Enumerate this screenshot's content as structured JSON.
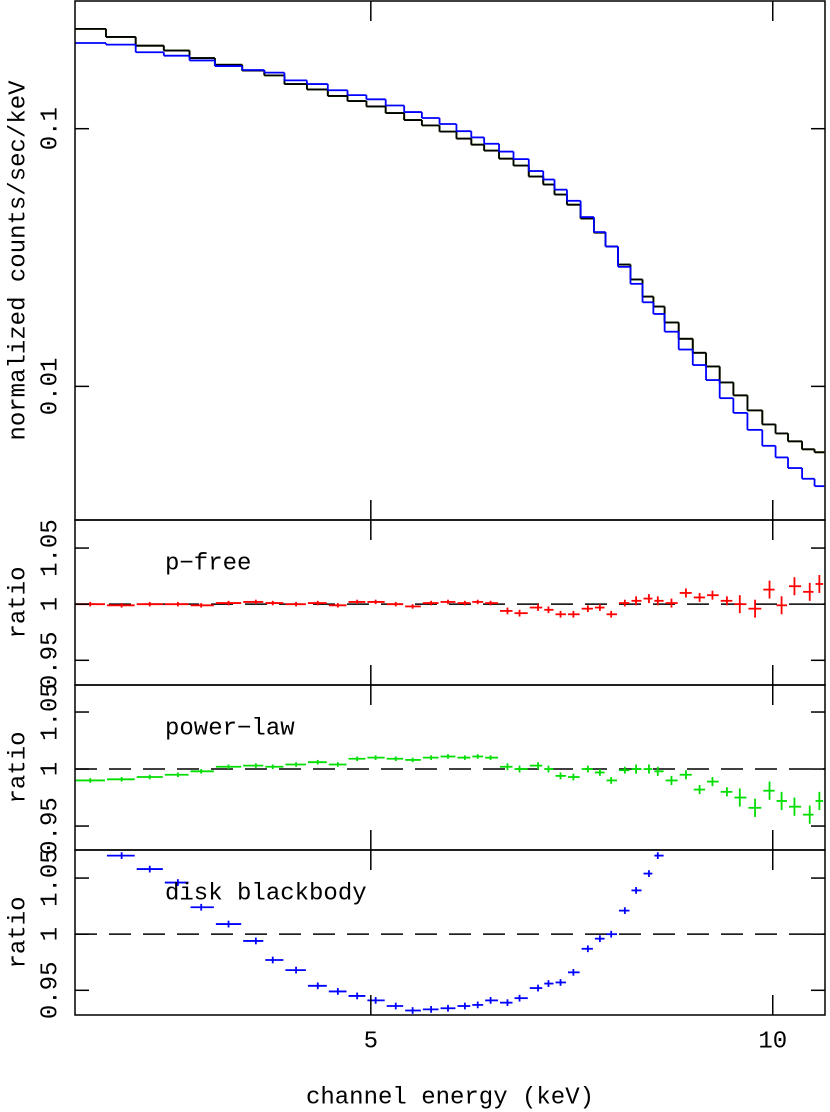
{
  "chart_data": [
    {
      "type": "step",
      "ylabel": "normalized counts/sec/keV",
      "log": true,
      "xlim": [
        1.32,
        10.65
      ],
      "xticks": [
        5,
        10
      ],
      "ylim": [
        0.00303,
        0.313
      ],
      "yticks": [
        0.01,
        0.1
      ],
      "x": [
        1.51,
        1.9,
        2.25,
        2.6,
        2.89,
        3.23,
        3.57,
        3.78,
        4.07,
        4.34,
        4.59,
        4.83,
        5.06,
        5.31,
        5.52,
        5.75,
        5.96,
        6.17,
        6.33,
        6.49,
        6.7,
        6.85,
        7.08,
        7.21,
        7.36,
        7.52,
        7.7,
        7.85,
        7.99,
        8.16,
        8.3,
        8.46,
        8.57,
        8.74,
        8.92,
        9.09,
        9.25,
        9.43,
        9.59,
        9.78,
        9.96,
        10.11,
        10.27,
        10.46,
        10.58
      ],
      "series": [
        {
          "color": "#ff0000",
          "values": [
            0.244,
            0.227,
            0.21,
            0.201,
            0.188,
            0.177,
            0.168,
            0.161,
            0.149,
            0.142,
            0.134,
            0.128,
            0.122,
            0.115,
            0.108,
            0.103,
            0.0974,
            0.0915,
            0.0867,
            0.0822,
            0.0765,
            0.0719,
            0.0652,
            0.0607,
            0.0555,
            0.0507,
            0.0448,
            0.0395,
            0.0349,
            0.0297,
            0.026,
            0.0223,
            0.0204,
            0.0177,
            0.0153,
            0.0135,
            0.01195,
            0.01036,
            0.00923,
            0.00807,
            0.00712,
            0.00657,
            0.00612,
            0.0057,
            0.00555
          ]
        },
        {
          "color": "#00dd00",
          "values": [
            0.244,
            0.227,
            0.21,
            0.201,
            0.188,
            0.177,
            0.168,
            0.161,
            0.149,
            0.142,
            0.134,
            0.128,
            0.122,
            0.115,
            0.108,
            0.103,
            0.0974,
            0.0915,
            0.0867,
            0.0822,
            0.0765,
            0.0719,
            0.0652,
            0.0607,
            0.0555,
            0.0507,
            0.0448,
            0.0395,
            0.0349,
            0.0297,
            0.026,
            0.0223,
            0.0204,
            0.0177,
            0.0153,
            0.0135,
            0.01195,
            0.01036,
            0.00923,
            0.00807,
            0.00712,
            0.00657,
            0.00612,
            0.0057,
            0.00555
          ]
        },
        {
          "color": "#000000",
          "values": [
            0.244,
            0.227,
            0.21,
            0.201,
            0.188,
            0.177,
            0.168,
            0.161,
            0.149,
            0.142,
            0.134,
            0.128,
            0.122,
            0.115,
            0.108,
            0.103,
            0.0974,
            0.0915,
            0.0867,
            0.0822,
            0.0765,
            0.0719,
            0.0652,
            0.0607,
            0.0555,
            0.0507,
            0.0448,
            0.0395,
            0.0349,
            0.0297,
            0.026,
            0.0223,
            0.0204,
            0.0177,
            0.0153,
            0.0135,
            0.01195,
            0.01036,
            0.00923,
            0.00807,
            0.00712,
            0.00657,
            0.00612,
            0.0057,
            0.00555
          ]
        },
        {
          "color": "#0000ff",
          "values": [
            0.215,
            0.212,
            0.198,
            0.192,
            0.184,
            0.175,
            0.169,
            0.165,
            0.154,
            0.149,
            0.141,
            0.135,
            0.13,
            0.123,
            0.116,
            0.11,
            0.1043,
            0.0978,
            0.0925,
            0.0874,
            0.0815,
            0.0762,
            0.0685,
            0.0635,
            0.058,
            0.0525,
            0.0454,
            0.0397,
            0.0349,
            0.0291,
            0.025,
            0.0212,
            0.0191,
            0.0163,
            0.0139,
            0.0121,
            0.01058,
            0.009,
            0.00789,
            0.00678,
            0.00588,
            0.0053,
            0.00482,
            0.00438,
            0.0041
          ]
        }
      ]
    },
    {
      "type": "ratio",
      "ylabel": "ratio",
      "annotation": "p−free",
      "color": "#ff0000",
      "hline": 1,
      "xlim": [
        1.32,
        10.65
      ],
      "xticks": [
        5,
        10
      ],
      "ylim": [
        0.928,
        1.075
      ],
      "yticks": [
        0.95,
        1,
        1.05
      ],
      "x": [
        1.51,
        1.9,
        2.25,
        2.6,
        2.89,
        3.23,
        3.57,
        3.78,
        4.07,
        4.34,
        4.59,
        4.83,
        5.06,
        5.31,
        5.52,
        5.75,
        5.96,
        6.17,
        6.33,
        6.49,
        6.7,
        6.85,
        7.08,
        7.21,
        7.36,
        7.52,
        7.7,
        7.85,
        7.99,
        8.16,
        8.3,
        8.46,
        8.57,
        8.74,
        8.92,
        9.09,
        9.25,
        9.43,
        9.59,
        9.78,
        9.96,
        10.11,
        10.27,
        10.46,
        10.58
      ],
      "values": [
        1.0,
        0.999,
        1.0,
        1.0,
        0.999,
        1.001,
        1.002,
        1.001,
        1.0,
        1.001,
        0.999,
        1.002,
        1.002,
        1.0,
        0.998,
        1.001,
        1.002,
        1.001,
        1.002,
        1.001,
        0.994,
        0.992,
        0.997,
        0.995,
        0.991,
        0.991,
        0.996,
        0.997,
        0.991,
        1.001,
        1.003,
        1.005,
        1.003,
        1.001,
        1.01,
        1.006,
        1.008,
        1.003,
        1.0,
        0.996,
        1.013,
        0.999,
        1.016,
        1.011,
        1.018
      ],
      "errors": [
        0.002,
        0.002,
        0.002,
        0.002,
        0.002,
        0.002,
        0.002,
        0.002,
        0.002,
        0.002,
        0.002,
        0.002,
        0.002,
        0.002,
        0.002,
        0.002,
        0.002,
        0.002,
        0.002,
        0.002,
        0.003,
        0.003,
        0.003,
        0.003,
        0.003,
        0.003,
        0.003,
        0.003,
        0.003,
        0.003,
        0.004,
        0.004,
        0.004,
        0.004,
        0.004,
        0.004,
        0.004,
        0.004,
        0.008,
        0.008,
        0.008,
        0.008,
        0.008,
        0.008,
        0.008
      ]
    },
    {
      "type": "ratio",
      "ylabel": "ratio",
      "annotation": "power−law",
      "color": "#00dd00",
      "hline": 1,
      "xlim": [
        1.32,
        10.65
      ],
      "xticks": [
        5,
        10
      ],
      "ylim": [
        0.929,
        1.0737
      ],
      "yticks": [
        0.95,
        1,
        1.05
      ],
      "x": [
        1.51,
        1.9,
        2.25,
        2.6,
        2.89,
        3.23,
        3.57,
        3.78,
        4.07,
        4.34,
        4.59,
        4.83,
        5.06,
        5.31,
        5.52,
        5.75,
        5.96,
        6.17,
        6.33,
        6.49,
        6.7,
        6.85,
        7.08,
        7.21,
        7.36,
        7.52,
        7.7,
        7.85,
        7.99,
        8.16,
        8.3,
        8.46,
        8.57,
        8.74,
        8.92,
        9.09,
        9.25,
        9.43,
        9.59,
        9.78,
        9.96,
        10.11,
        10.27,
        10.46,
        10.58
      ],
      "values": [
        0.99,
        0.991,
        0.993,
        0.995,
        0.998,
        1.002,
        1.003,
        1.002,
        1.004,
        1.006,
        1.004,
        1.009,
        1.01,
        1.009,
        1.008,
        1.01,
        1.011,
        1.01,
        1.011,
        1.01,
        1.002,
        1.0,
        1.003,
        1.0,
        0.994,
        0.993,
        1.0,
        0.997,
        0.99,
        0.999,
        1.0,
        1.0,
        0.998,
        0.99,
        0.995,
        0.982,
        0.989,
        0.98,
        0.975,
        0.966,
        0.981,
        0.972,
        0.967,
        0.96,
        0.972
      ],
      "errors": [
        0.002,
        0.002,
        0.002,
        0.002,
        0.002,
        0.002,
        0.002,
        0.002,
        0.002,
        0.002,
        0.002,
        0.002,
        0.002,
        0.002,
        0.002,
        0.002,
        0.002,
        0.002,
        0.002,
        0.002,
        0.003,
        0.003,
        0.003,
        0.003,
        0.003,
        0.003,
        0.003,
        0.003,
        0.003,
        0.003,
        0.004,
        0.004,
        0.004,
        0.004,
        0.004,
        0.004,
        0.004,
        0.004,
        0.008,
        0.008,
        0.008,
        0.008,
        0.008,
        0.008,
        0.008
      ]
    },
    {
      "type": "ratio",
      "ylabel": "ratio",
      "annotation": "disk blackbody",
      "color": "#0000ff",
      "hline": 1,
      "xlabel": "channel energy (keV)",
      "xlim": [
        1.32,
        10.65
      ],
      "xticks": [
        5,
        10
      ],
      "ylim": [
        0.928,
        1.075
      ],
      "yticks": [
        0.95,
        1,
        1.05
      ],
      "x": [
        1.51,
        1.9,
        2.25,
        2.6,
        2.89,
        3.23,
        3.57,
        3.78,
        4.07,
        4.34,
        4.59,
        4.83,
        5.06,
        5.31,
        5.52,
        5.75,
        5.96,
        6.17,
        6.33,
        6.49,
        6.7,
        6.85,
        7.08,
        7.21,
        7.36,
        7.52,
        7.7,
        7.85,
        7.99,
        8.16,
        8.3,
        8.46,
        8.57,
        8.74,
        8.92,
        9.09,
        9.25,
        9.43,
        9.59,
        9.78,
        9.96,
        10.11,
        10.27,
        10.46,
        10.58
      ],
      "values": [
        null,
        1.07,
        1.058,
        1.046,
        1.024,
        1.009,
        0.994,
        0.977,
        0.968,
        0.954,
        0.949,
        0.945,
        0.941,
        0.936,
        0.932,
        0.933,
        0.934,
        0.936,
        0.937,
        0.941,
        0.939,
        0.943,
        0.952,
        0.956,
        0.957,
        0.966,
        0.987,
        0.996,
        1.0,
        1.021,
        1.039,
        1.054,
        1.07,
        null,
        null,
        null,
        null,
        null,
        null,
        null,
        null,
        null,
        null,
        null,
        null
      ],
      "errors": [
        null,
        0.003,
        0.003,
        0.003,
        0.003,
        0.003,
        0.003,
        0.003,
        0.003,
        0.003,
        0.003,
        0.003,
        0.003,
        0.003,
        0.003,
        0.003,
        0.003,
        0.003,
        0.003,
        0.003,
        0.003,
        0.003,
        0.003,
        0.003,
        0.003,
        0.003,
        0.003,
        0.003,
        0.003,
        0.003,
        0.003,
        0.003,
        0.003,
        null,
        null,
        null,
        null,
        null,
        null,
        null,
        null,
        null,
        null,
        null,
        null
      ]
    }
  ]
}
